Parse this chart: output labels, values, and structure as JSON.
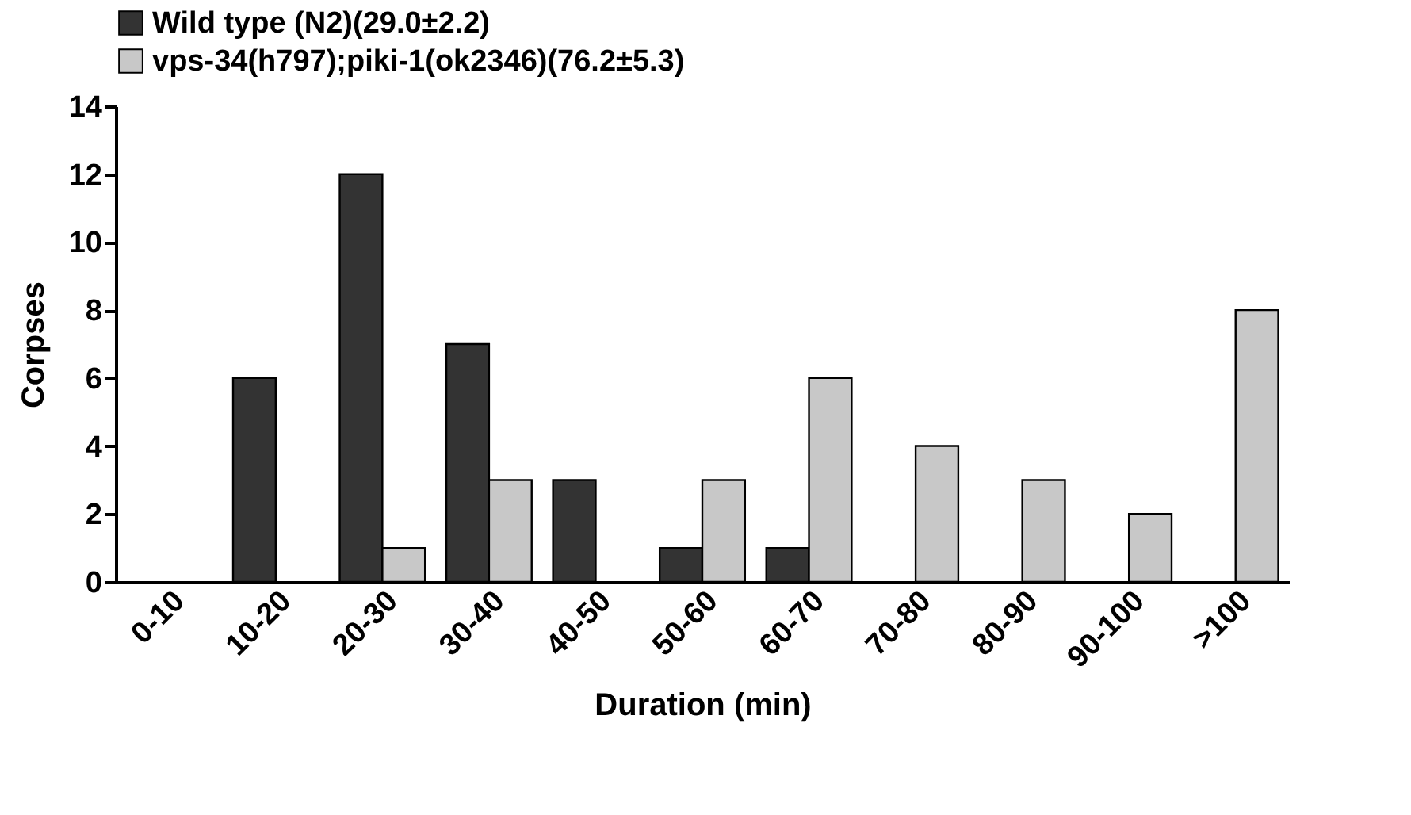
{
  "chart_data": {
    "type": "bar",
    "xlabel": "Duration (min)",
    "ylabel": "Corpses",
    "categories": [
      "0-10",
      "10-20",
      "20-30",
      "30-40",
      "40-50",
      "50-60",
      "60-70",
      "70-80",
      "80-90",
      "90-100",
      ">100"
    ],
    "series": [
      {
        "name": "Wild type (N2)(29.0±2.2)",
        "color": "#333333",
        "values": [
          0,
          6,
          12,
          7,
          3,
          1,
          1,
          0,
          0,
          0,
          0
        ]
      },
      {
        "name": "vps-34(h797);piki-1(ok2346)(76.2±5.3)",
        "color": "#c8c8c8",
        "values": [
          0,
          0,
          1,
          3,
          0,
          3,
          6,
          4,
          3,
          2,
          8
        ]
      }
    ],
    "ylim": [
      0,
      14
    ],
    "yticks": [
      0,
      2,
      4,
      6,
      8,
      10,
      12,
      14
    ],
    "legend": "top",
    "grid": false
  }
}
